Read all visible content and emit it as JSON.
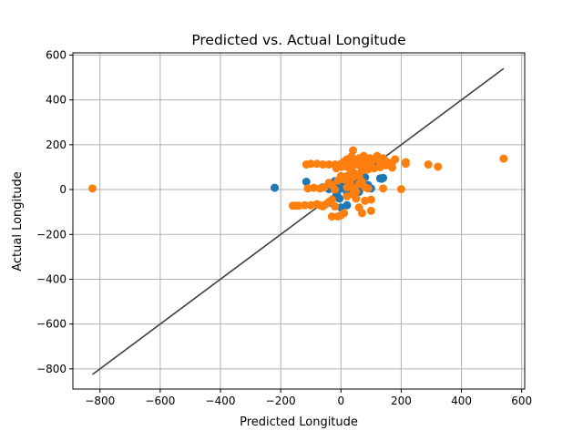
{
  "chart_data": {
    "type": "scatter",
    "title": "Predicted vs. Actual Longitude",
    "xlabel": "Predicted Longitude",
    "ylabel": "Actual Longitude",
    "xlim": [
      -890,
      610
    ],
    "ylim": [
      -890,
      610
    ],
    "grid": true,
    "x_ticks": [
      -800,
      -600,
      -400,
      -200,
      0,
      200,
      400,
      600
    ],
    "y_ticks": [
      -800,
      -600,
      -400,
      -200,
      0,
      200,
      400,
      600
    ],
    "reference_line": {
      "x": [
        -825,
        540
      ],
      "y": [
        -825,
        540
      ],
      "color": "#404040"
    },
    "series": [
      {
        "color": "#1f77b4",
        "points": [
          [
            -220,
            8
          ],
          [
            -115,
            35
          ],
          [
            -60,
            10
          ],
          [
            -40,
            2
          ],
          [
            -20,
            38
          ],
          [
            -15,
            -20
          ],
          [
            -10,
            15
          ],
          [
            -5,
            -40
          ],
          [
            0,
            5
          ],
          [
            5,
            20
          ],
          [
            10,
            40
          ],
          [
            15,
            55
          ],
          [
            20,
            -15
          ],
          [
            25,
            30
          ],
          [
            30,
            10
          ],
          [
            35,
            45
          ],
          [
            40,
            0
          ],
          [
            50,
            25
          ],
          [
            55,
            60
          ],
          [
            60,
            -10
          ],
          [
            65,
            35
          ],
          [
            70,
            50
          ],
          [
            75,
            15
          ],
          [
            80,
            55
          ],
          [
            90,
            20
          ],
          [
            100,
            5
          ],
          [
            130,
            50
          ],
          [
            135,
            48
          ],
          [
            140,
            52
          ],
          [
            -30,
            -60
          ],
          [
            0,
            -80
          ],
          [
            20,
            -70
          ]
        ]
      },
      {
        "color": "#ff7f0e",
        "points": [
          [
            -825,
            5
          ],
          [
            540,
            138
          ],
          [
            322,
            102
          ],
          [
            290,
            112
          ],
          [
            215,
            122
          ],
          [
            215,
            115
          ],
          [
            200,
            2
          ],
          [
            180,
            135
          ],
          [
            170,
            120
          ],
          [
            160,
            110
          ],
          [
            150,
            125
          ],
          [
            140,
            140
          ],
          [
            130,
            115
          ],
          [
            120,
            150
          ],
          [
            110,
            135
          ],
          [
            100,
            120
          ],
          [
            95,
            140
          ],
          [
            90,
            105
          ],
          [
            85,
            130
          ],
          [
            80,
            115
          ],
          [
            75,
            150
          ],
          [
            70,
            125
          ],
          [
            65,
            105
          ],
          [
            60,
            140
          ],
          [
            55,
            118
          ],
          [
            50,
            128
          ],
          [
            45,
            110
          ],
          [
            40,
            175
          ],
          [
            35,
            148
          ],
          [
            30,
            120
          ],
          [
            25,
            105
          ],
          [
            20,
            135
          ],
          [
            15,
            112
          ],
          [
            10,
            125
          ],
          [
            5,
            102
          ],
          [
            0,
            115
          ],
          [
            -10,
            108
          ],
          [
            -20,
            112
          ],
          [
            -40,
            112
          ],
          [
            -60,
            112
          ],
          [
            -80,
            115
          ],
          [
            -100,
            115
          ],
          [
            -115,
            112
          ],
          [
            140,
            5
          ],
          [
            100,
            -45
          ],
          [
            100,
            -95
          ],
          [
            80,
            -50
          ],
          [
            70,
            -105
          ],
          [
            60,
            -80
          ],
          [
            50,
            -40
          ],
          [
            40,
            5
          ],
          [
            30,
            30
          ],
          [
            20,
            -30
          ],
          [
            10,
            -105
          ],
          [
            0,
            -115
          ],
          [
            -10,
            -120
          ],
          [
            -30,
            -120
          ],
          [
            -20,
            -75
          ],
          [
            -30,
            -45
          ],
          [
            -40,
            -55
          ],
          [
            -50,
            -65
          ],
          [
            -60,
            -75
          ],
          [
            -70,
            -70
          ],
          [
            -80,
            -65
          ],
          [
            -100,
            -70
          ],
          [
            -120,
            -70
          ],
          [
            -140,
            -72
          ],
          [
            -150,
            -72
          ],
          [
            -160,
            -72
          ],
          [
            -55,
            10
          ],
          [
            -70,
            5
          ],
          [
            -90,
            8
          ],
          [
            -110,
            5
          ],
          [
            -40,
            30
          ],
          [
            -30,
            20
          ],
          [
            -20,
            0
          ],
          [
            -10,
            40
          ],
          [
            0,
            60
          ],
          [
            10,
            45
          ],
          [
            20,
            60
          ],
          [
            30,
            65
          ],
          [
            40,
            55
          ],
          [
            50,
            70
          ],
          [
            60,
            60
          ],
          [
            70,
            35
          ],
          [
            80,
            10
          ],
          [
            90,
            5
          ],
          [
            50,
            -10
          ],
          [
            40,
            -20
          ],
          [
            30,
            15
          ],
          [
            20,
            10
          ],
          [
            60,
            25
          ],
          [
            70,
            85
          ],
          [
            90,
            90
          ],
          [
            110,
            95
          ],
          [
            130,
            100
          ],
          [
            150,
            108
          ],
          [
            170,
            98
          ],
          [
            -15,
            95
          ],
          [
            35,
            88
          ],
          [
            25,
            98
          ]
        ]
      }
    ]
  }
}
